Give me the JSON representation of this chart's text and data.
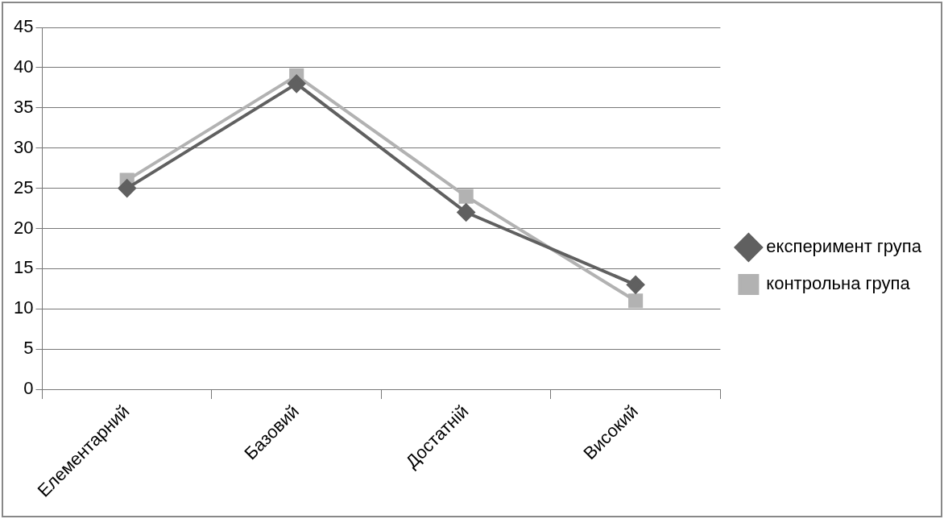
{
  "chart_data": {
    "type": "line",
    "categories": [
      "Елементарний",
      "Базовий",
      "Достатній",
      "Високий"
    ],
    "series": [
      {
        "name": "експеримент група",
        "color": "#606060",
        "marker": "diamond",
        "values": [
          25,
          38,
          22,
          13
        ]
      },
      {
        "name": "контрольна група",
        "color": "#b2b2b2",
        "marker": "square",
        "values": [
          26,
          39,
          24,
          11
        ]
      }
    ],
    "ylim": [
      0,
      45
    ],
    "yticks": [
      0,
      5,
      10,
      15,
      20,
      25,
      30,
      35,
      40,
      45
    ],
    "grid": "y",
    "legend": "right",
    "line_style": "solid"
  }
}
